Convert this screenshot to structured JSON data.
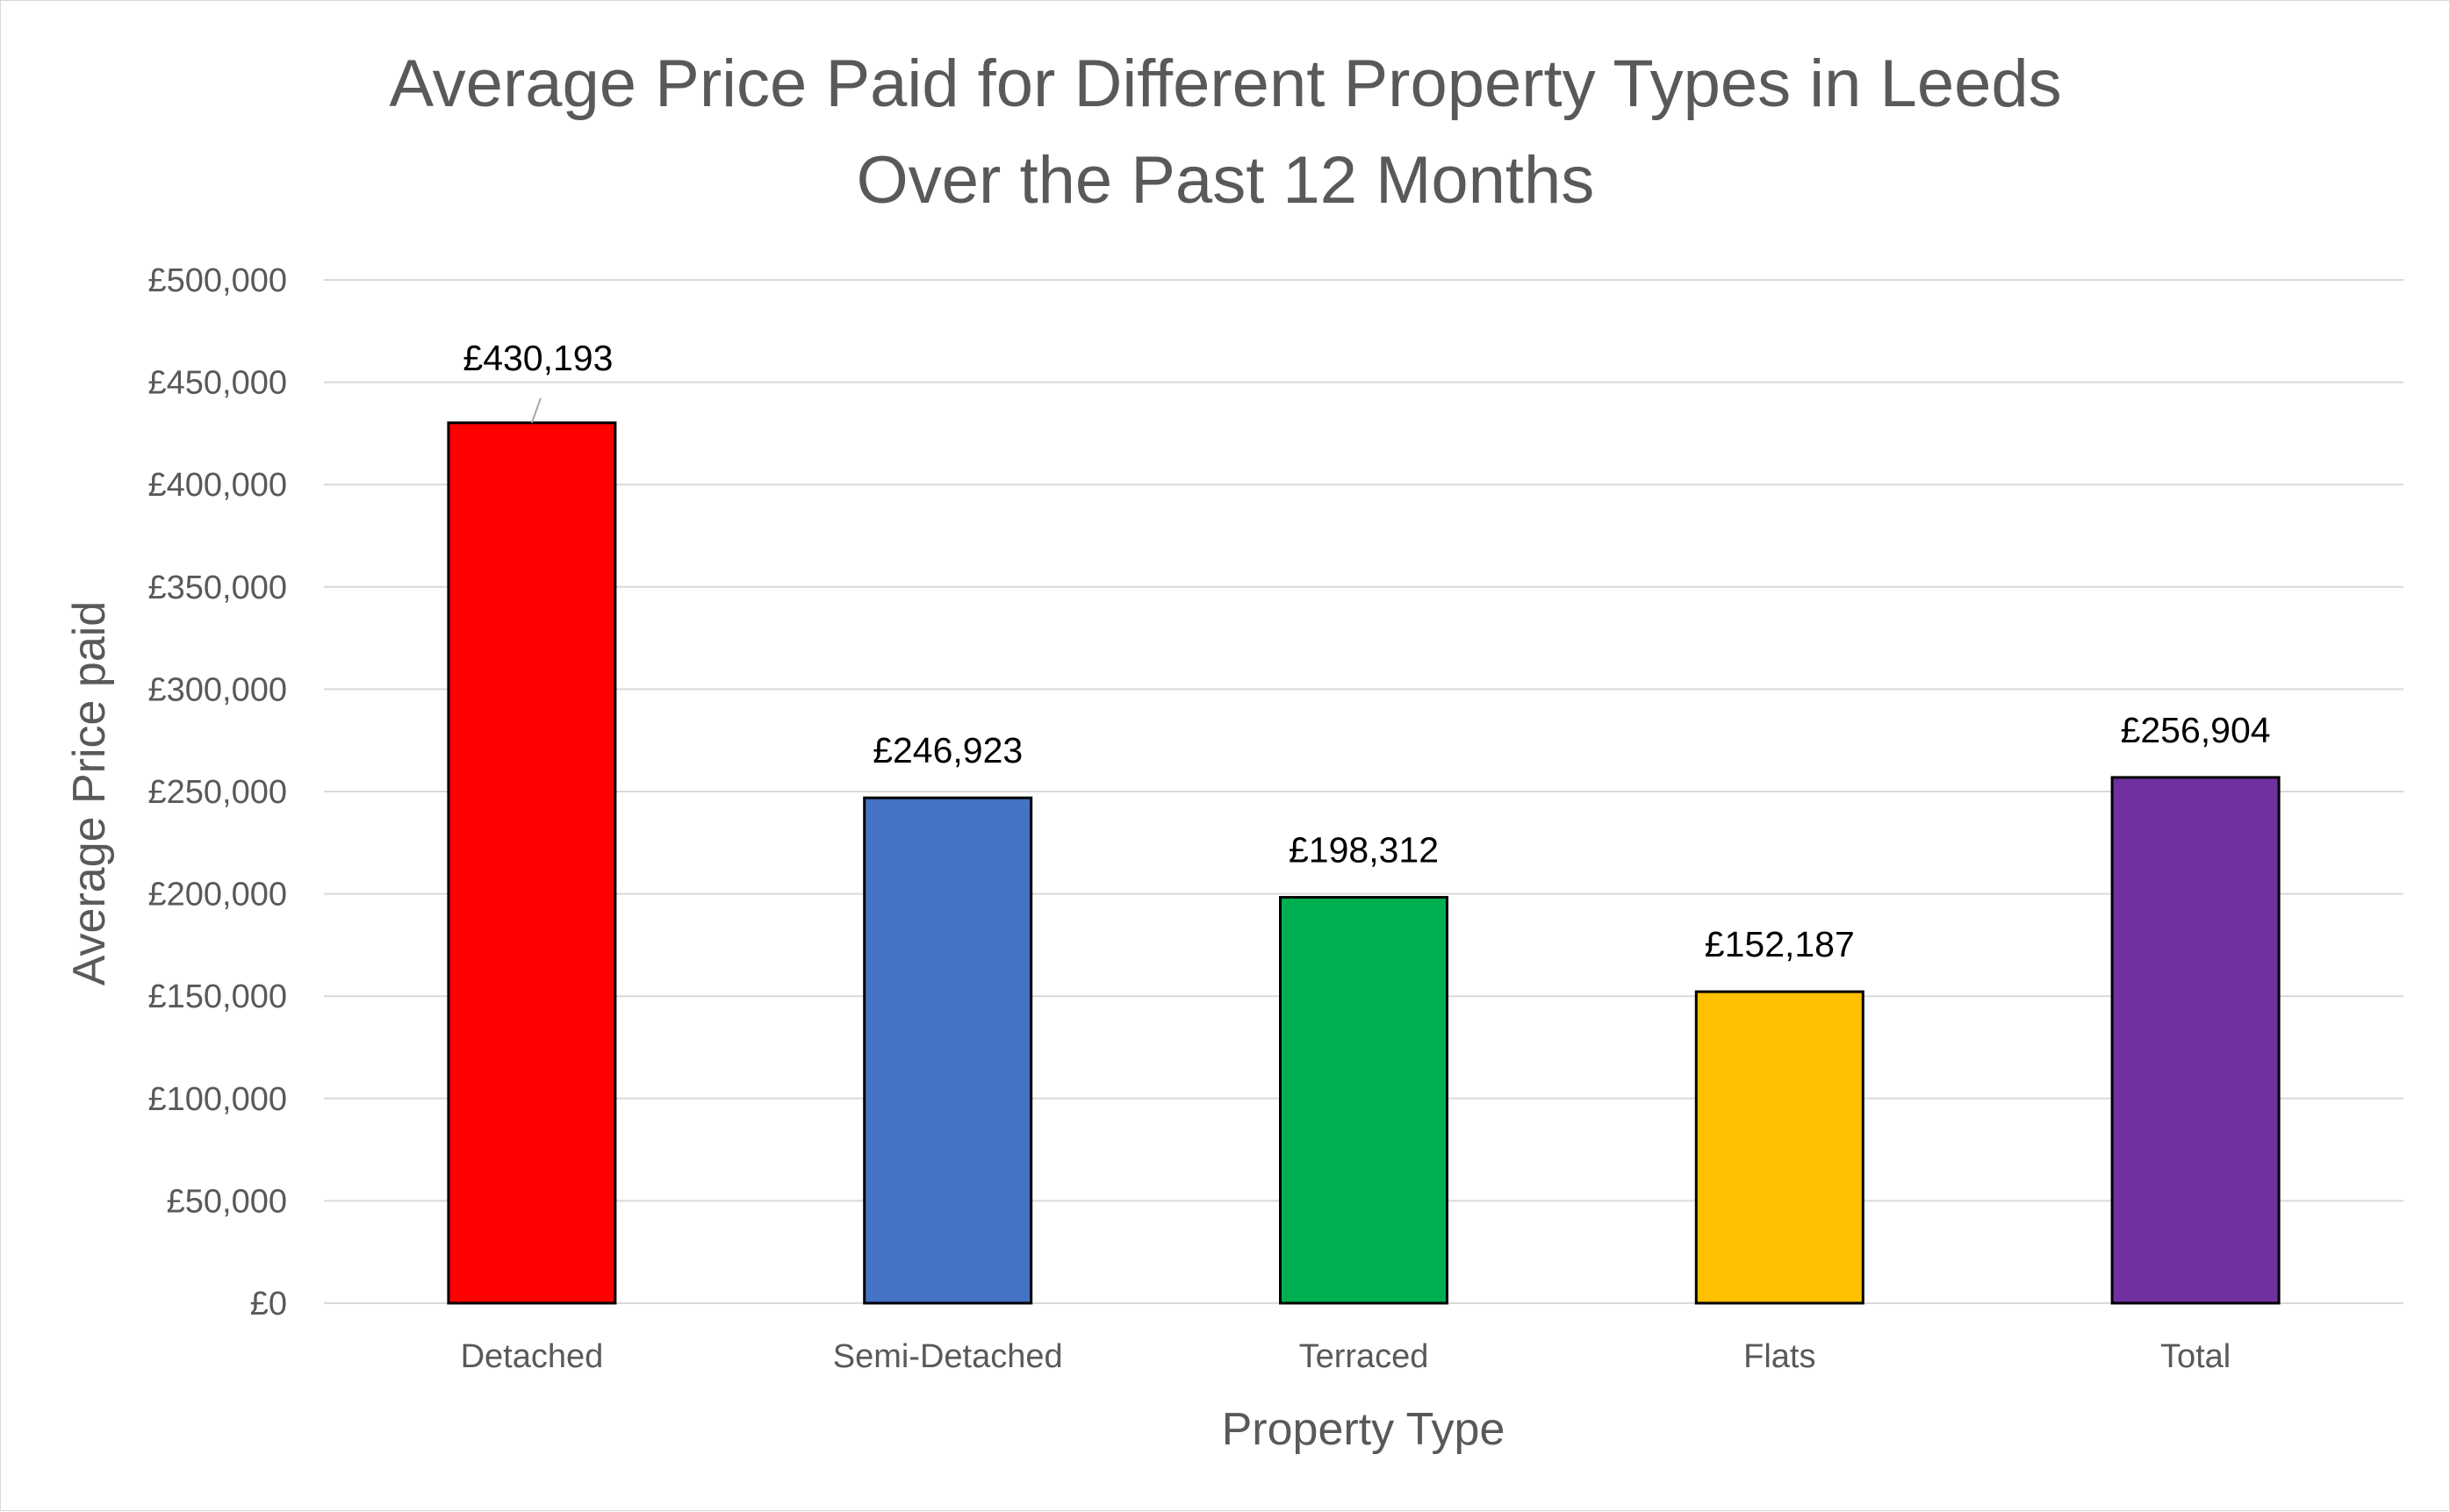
{
  "chart_data": {
    "type": "bar",
    "title_lines": [
      "Average Price Paid for Different Property Types in Leeds",
      "Over the Past 12 Months"
    ],
    "xlabel": "Property Type",
    "ylabel": "Average Price paid",
    "categories": [
      "Detached",
      "Semi-Detached",
      "Terraced",
      "Flats",
      "Total"
    ],
    "values": [
      430193,
      246923,
      198312,
      152187,
      256904
    ],
    "data_labels": [
      "£430,193",
      "£246,923",
      "£198,312",
      "£152,187",
      "£256,904"
    ],
    "colors": [
      "#FF0000",
      "#4472C4",
      "#00B050",
      "#FFC000",
      "#7030A0"
    ],
    "ylim": [
      0,
      500000
    ],
    "y_ticks": [
      0,
      50000,
      100000,
      150000,
      200000,
      250000,
      300000,
      350000,
      400000,
      450000,
      500000
    ],
    "y_tick_labels": [
      "£0",
      "£50,000",
      "£100,000",
      "£150,000",
      "£200,000",
      "£250,000",
      "£300,000",
      "£350,000",
      "£400,000",
      "£450,000",
      "£500,000"
    ],
    "grid": true,
    "legend": "none"
  }
}
